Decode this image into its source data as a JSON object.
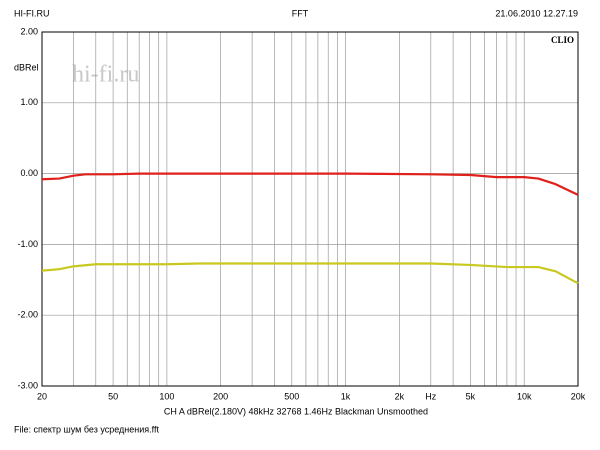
{
  "chart_data": {
    "type": "line",
    "header_left": "HI-FI.RU",
    "title": "FFT",
    "header_right": "21.06.2010 12.27.19",
    "brand": "CLIO",
    "watermark": "hi-fi.ru",
    "ylabel": "dBRel",
    "settings_line": "CH A  dBRel(2.180V)  48kHz  32768  1.46Hz  Blackman  Unsmoothed",
    "file_line": "File: спектр шум без усреднения.fft",
    "xscale": "log",
    "xlim": [
      20,
      20000
    ],
    "ylim": [
      -3,
      2
    ],
    "xticks": [
      20,
      50,
      100,
      200,
      500,
      {
        "value": 1000,
        "label": "1k"
      },
      {
        "value": 2000,
        "label": "2k"
      },
      {
        "value": 3000,
        "label": "Hz"
      },
      {
        "value": 5000,
        "label": "5k"
      },
      {
        "value": 10000,
        "label": "10k"
      },
      {
        "value": 20000,
        "label": "20k"
      }
    ],
    "xgrid": [
      30,
      40,
      60,
      70,
      80,
      90,
      300,
      400,
      600,
      700,
      800,
      900,
      4000,
      6000,
      7000,
      8000,
      9000
    ],
    "yticks": [
      {
        "value": 2,
        "label": "2.00"
      },
      {
        "value": 1,
        "label": "1.00"
      },
      {
        "value": 0,
        "label": "0.00"
      },
      {
        "value": -1,
        "label": "-1.00"
      },
      {
        "value": -2,
        "label": "-2.00"
      },
      {
        "value": -3,
        "label": "-3.00"
      }
    ],
    "grid": true,
    "series": [
      {
        "color": "#e0201a",
        "x": [
          20,
          25,
          30,
          35,
          40,
          50,
          70,
          100,
          1000,
          3000,
          5000,
          7000,
          10000,
          12000,
          15000,
          20000
        ],
        "values": [
          -0.08,
          -0.07,
          -0.03,
          -0.01,
          -0.01,
          -0.01,
          0,
          0,
          0,
          -0.01,
          -0.02,
          -0.05,
          -0.05,
          -0.07,
          -0.15,
          -0.3
        ]
      },
      {
        "color": "#c8c81e",
        "x": [
          20,
          25,
          30,
          40,
          100,
          150,
          3000,
          5000,
          8000,
          12000,
          15000,
          20000
        ],
        "values": [
          -1.37,
          -1.35,
          -1.31,
          -1.28,
          -1.28,
          -1.27,
          -1.27,
          -1.29,
          -1.32,
          -1.32,
          -1.38,
          -1.55
        ]
      }
    ]
  }
}
